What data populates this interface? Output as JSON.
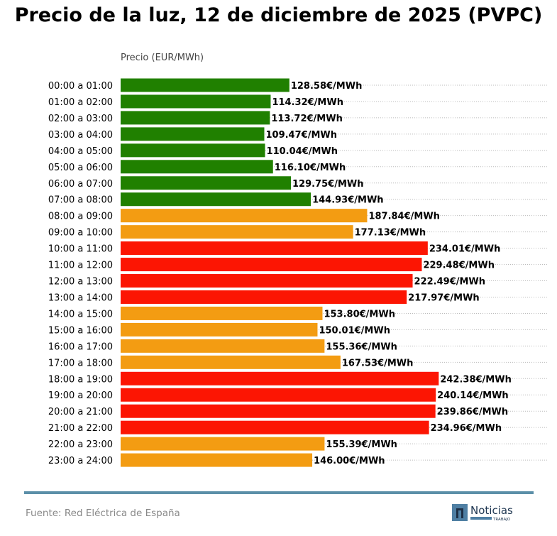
{
  "chart_data": {
    "type": "bar",
    "orientation": "horizontal",
    "title": "Precio de la luz, 12 de diciembre de 2025 (PVPC)",
    "xlabel": "Precio (EUR/MWh)",
    "ylabel": "",
    "xlim": [
      0,
      326
    ],
    "grid": "dotted horizontal",
    "value_suffix": "€/MWh",
    "categories": [
      "00:00 a 01:00",
      "01:00 a 02:00",
      "02:00 a 03:00",
      "03:00 a 04:00",
      "04:00 a 05:00",
      "05:00 a 06:00",
      "06:00 a 07:00",
      "07:00 a 08:00",
      "08:00 a 09:00",
      "09:00 a 10:00",
      "10:00 a 11:00",
      "11:00 a 12:00",
      "12:00 a 13:00",
      "13:00 a 14:00",
      "14:00 a 15:00",
      "15:00 a 16:00",
      "16:00 a 17:00",
      "17:00 a 18:00",
      "18:00 a 19:00",
      "19:00 a 20:00",
      "20:00 a 21:00",
      "21:00 a 22:00",
      "22:00 a 23:00",
      "23:00 a 24:00"
    ],
    "values": [
      128.58,
      114.32,
      113.72,
      109.47,
      110.04,
      116.1,
      129.75,
      144.93,
      187.84,
      177.13,
      234.01,
      229.48,
      222.49,
      217.97,
      153.8,
      150.01,
      155.36,
      167.53,
      242.38,
      240.14,
      239.86,
      234.96,
      155.39,
      146.0
    ],
    "levels": [
      "low",
      "low",
      "low",
      "low",
      "low",
      "low",
      "low",
      "low",
      "mid",
      "mid",
      "high",
      "high",
      "high",
      "high",
      "mid",
      "mid",
      "mid",
      "mid",
      "high",
      "high",
      "high",
      "high",
      "mid",
      "mid"
    ],
    "colors": {
      "low": "#208000",
      "mid": "#f39c12",
      "high": "#fc1503"
    }
  },
  "footer": {
    "source": "Fuente: Red Eléctrica de España",
    "rule_color": "#5b8fa8",
    "logo_text": "Noticias",
    "logo_subtext": "TRABAJO"
  }
}
